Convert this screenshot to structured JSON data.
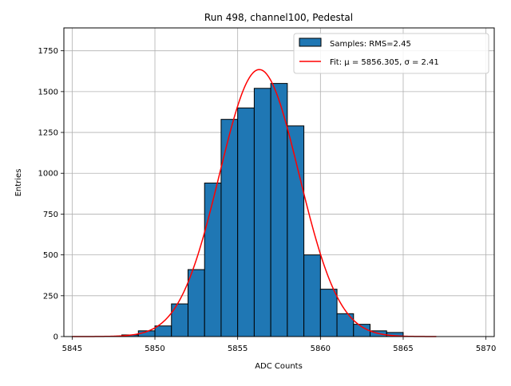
{
  "chart_data": {
    "type": "bar",
    "title": "Run 498, channel100, Pedestal",
    "xlabel": "ADC Counts",
    "ylabel": "Entries",
    "xlim": [
      5844.5,
      5870.5
    ],
    "ylim": [
      0,
      1890
    ],
    "xticks": [
      5845,
      5850,
      5855,
      5860,
      5865,
      5870
    ],
    "yticks": [
      0,
      250,
      500,
      750,
      1000,
      1250,
      1500,
      1750
    ],
    "grid": true,
    "legend_position": "top-right",
    "histogram": {
      "name": "Samples: RMS=2.45",
      "color": "#1f77b4",
      "bin_width": 1,
      "bin_starts": [
        5848,
        5849,
        5850,
        5851,
        5852,
        5853,
        5854,
        5855,
        5856,
        5857,
        5858,
        5859,
        5860,
        5861,
        5862,
        5863,
        5864
      ],
      "values": [
        10,
        35,
        65,
        200,
        410,
        940,
        1330,
        1400,
        1520,
        1550,
        1290,
        500,
        290,
        140,
        75,
        35,
        25
      ]
    },
    "fit": {
      "name": "Fit: μ = 5856.305, σ = 2.41",
      "color": "#ff0000",
      "mu": 5856.305,
      "sigma": 2.41,
      "amplitude": 1635,
      "x_range": [
        5845,
        5867
      ]
    }
  }
}
